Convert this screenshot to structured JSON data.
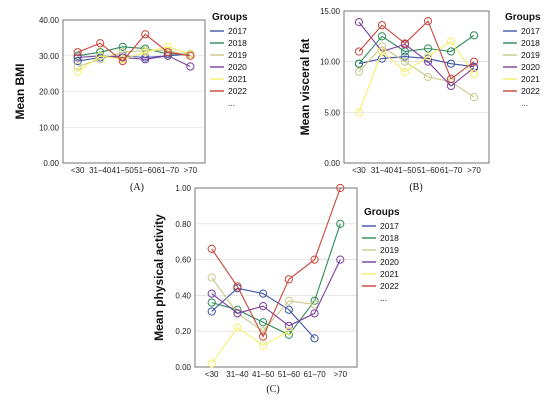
{
  "legend": {
    "title": "Groups",
    "ellipsis": "...",
    "entries": [
      {
        "label": "2017",
        "color": "#3a55a4"
      },
      {
        "label": "2018",
        "color": "#2e8b57"
      },
      {
        "label": "2019",
        "color": "#c9c98a"
      },
      {
        "label": "2020",
        "color": "#7b3fa0"
      },
      {
        "label": "2021",
        "color": "#f3ef6a"
      },
      {
        "label": "2022",
        "color": "#c9443c"
      }
    ]
  },
  "chart_data": [
    {
      "type": "line",
      "panel_label": "(A)",
      "ylabel": "Mean BMI",
      "ylim": [
        0,
        40
      ],
      "yticks": [
        "0.00",
        "10.00",
        "20.00",
        "30.00",
        "40.00"
      ],
      "categories": [
        "<30",
        "31–40",
        "41–50",
        "51–60",
        "61–70",
        ">70"
      ],
      "series": [
        {
          "name": "2017",
          "values": [
            28.5,
            29.5,
            30.0,
            29.5,
            30.0,
            30.5
          ]
        },
        {
          "name": "2018",
          "values": [
            30.0,
            31.0,
            32.5,
            32.0,
            30.5,
            30.5
          ]
        },
        {
          "name": "2019",
          "values": [
            27.0,
            29.0,
            31.0,
            31.5,
            31.5,
            30.0
          ]
        },
        {
          "name": "2020",
          "values": [
            29.5,
            30.0,
            29.5,
            29.0,
            30.0,
            27.0
          ]
        },
        {
          "name": "2021",
          "values": [
            25.5,
            30.0,
            29.0,
            31.0,
            32.5,
            30.5
          ]
        },
        {
          "name": "2022",
          "values": [
            31.0,
            33.5,
            28.5,
            36.0,
            31.0,
            30.0
          ]
        }
      ]
    },
    {
      "type": "line",
      "panel_label": "(B)",
      "ylabel": "Mean visceral fat",
      "ylim": [
        0,
        15
      ],
      "yticks": [
        "0.00",
        "5.00",
        "10.00",
        "15.00"
      ],
      "categories": [
        "<30",
        "31–40",
        "41–50",
        "51–60",
        "61–70",
        ">70"
      ],
      "series": [
        {
          "name": "2017",
          "values": [
            9.8,
            10.3,
            10.5,
            10.3,
            9.8,
            9.5
          ]
        },
        {
          "name": "2018",
          "values": [
            9.8,
            12.5,
            11.0,
            11.3,
            11.0,
            12.6
          ]
        },
        {
          "name": "2019",
          "values": [
            9.0,
            11.5,
            10.0,
            8.5,
            8.0,
            6.5
          ]
        },
        {
          "name": "2020",
          "values": [
            13.9,
            11.0,
            11.7,
            10.0,
            7.6,
            9.4
          ]
        },
        {
          "name": "2021",
          "values": [
            5.0,
            11.0,
            9.0,
            10.5,
            12.0,
            8.8
          ]
        },
        {
          "name": "2022",
          "values": [
            11.0,
            13.6,
            11.8,
            14.0,
            8.3,
            10.0
          ]
        }
      ]
    },
    {
      "type": "line",
      "panel_label": "(C)",
      "ylabel": "Mean physical activity",
      "ylim": [
        0,
        1
      ],
      "yticks": [
        "0.00",
        "0.20",
        "0.40",
        "0.60",
        "0.80",
        "1.00"
      ],
      "categories": [
        "<30",
        "31–40",
        "41–50",
        "51–60",
        "61–70",
        ">70"
      ],
      "series": [
        {
          "name": "2017",
          "values": [
            0.31,
            0.44,
            0.41,
            0.32,
            0.16,
            null
          ]
        },
        {
          "name": "2018",
          "values": [
            0.36,
            0.32,
            0.25,
            0.18,
            0.37,
            0.8
          ]
        },
        {
          "name": "2019",
          "values": [
            0.5,
            0.3,
            0.2,
            0.37,
            0.35,
            null
          ]
        },
        {
          "name": "2020",
          "values": [
            0.41,
            0.3,
            0.34,
            0.23,
            0.3,
            0.6
          ]
        },
        {
          "name": "2021",
          "values": [
            0.02,
            0.22,
            0.12,
            0.2,
            null,
            null
          ]
        },
        {
          "name": "2022",
          "values": [
            0.66,
            0.45,
            0.17,
            0.49,
            0.6,
            1.0
          ]
        }
      ]
    }
  ]
}
